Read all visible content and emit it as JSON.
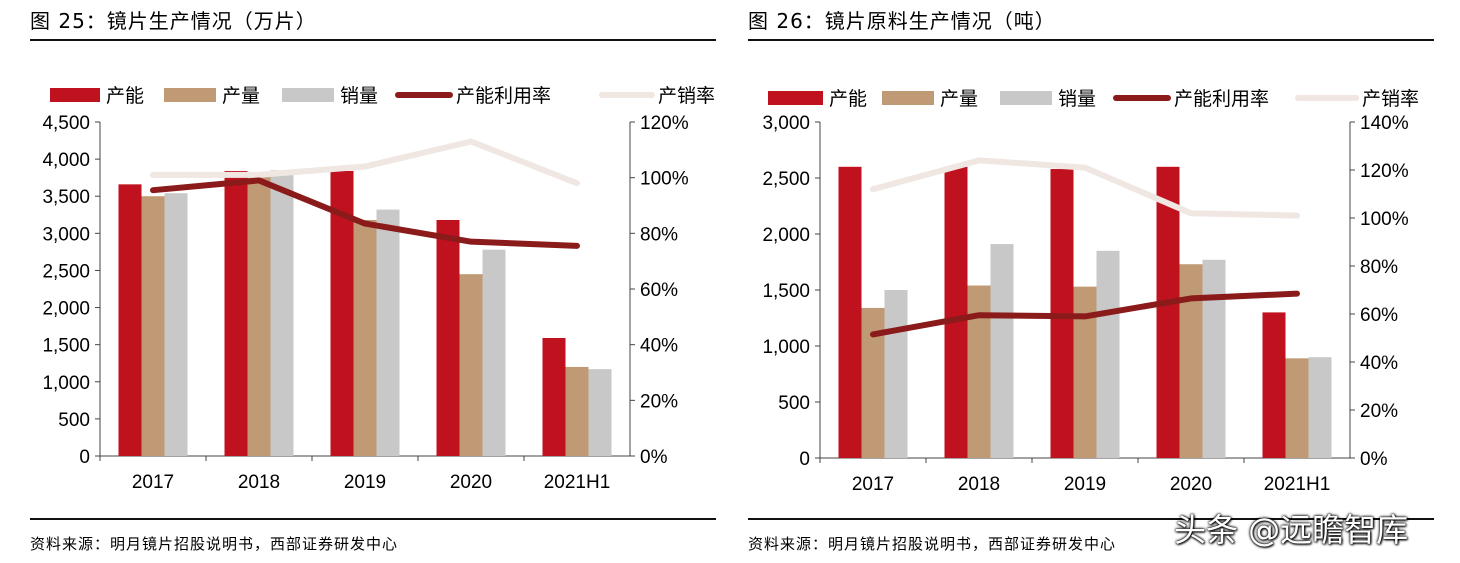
{
  "panels": [
    {
      "title": "图 25：镜片生产情况（万片）",
      "source": "资料来源：明月镜片招股说明书，西部证券研发中心",
      "legend": [
        "产能",
        "产量",
        "销量",
        "产能利用率",
        "产销率"
      ]
    },
    {
      "title": "图 26：镜片原料生产情况（吨）",
      "source": "资料来源：明月镜片招股说明书，西部证券研发中心",
      "legend": [
        "产能",
        "产量",
        "销量",
        "产能利用率",
        "产销率"
      ]
    }
  ],
  "watermark": "头条 @远瞻智库",
  "colors": {
    "capacity": "#c0111e",
    "output": "#bf9a74",
    "sales": "#c8c8c8",
    "utilization": "#8b1a1a",
    "sales_rate": "#f0e6e2"
  },
  "chart_data": [
    {
      "type": "bar",
      "categories": [
        "2017",
        "2018",
        "2019",
        "2020",
        "2021H1"
      ],
      "series": [
        {
          "name": "产能",
          "values": [
            3660,
            3840,
            3840,
            3180,
            1590
          ]
        },
        {
          "name": "产量",
          "values": [
            3500,
            3800,
            3180,
            2450,
            1200
          ]
        },
        {
          "name": "销量",
          "values": [
            3540,
            3850,
            3320,
            2780,
            1170
          ]
        },
        {
          "name": "产能利用率",
          "axis": "right",
          "kind": "line",
          "values": [
            95.5,
            99,
            83.5,
            77,
            75.5
          ]
        },
        {
          "name": "产销率",
          "axis": "right",
          "kind": "line",
          "values": [
            101,
            101,
            104,
            113,
            98
          ]
        }
      ],
      "y_ticks": [
        "0",
        "500",
        "1,000",
        "1,500",
        "2,000",
        "2,500",
        "3,000",
        "3,500",
        "4,000",
        "4,500"
      ],
      "y2_ticks": [
        "0%",
        "20%",
        "40%",
        "60%",
        "80%",
        "100%",
        "120%"
      ],
      "ylim": [
        0,
        4500
      ],
      "y2lim": [
        0,
        120
      ],
      "legend_position": "top"
    },
    {
      "type": "bar",
      "categories": [
        "2017",
        "2018",
        "2019",
        "2020",
        "2021H1"
      ],
      "series": [
        {
          "name": "产能",
          "values": [
            2600,
            2600,
            2580,
            2600,
            1300
          ]
        },
        {
          "name": "产量",
          "values": [
            1340,
            1540,
            1530,
            1730,
            890
          ]
        },
        {
          "name": "销量",
          "values": [
            1500,
            1910,
            1850,
            1770,
            900
          ]
        },
        {
          "name": "产能利用率",
          "axis": "right",
          "kind": "line",
          "values": [
            51.5,
            59.5,
            59,
            66.5,
            68.5
          ]
        },
        {
          "name": "产销率",
          "axis": "right",
          "kind": "line",
          "values": [
            112,
            124,
            121,
            102,
            101
          ]
        }
      ],
      "y_ticks": [
        "0",
        "500",
        "1,000",
        "1,500",
        "2,000",
        "2,500",
        "3,000"
      ],
      "y2_ticks": [
        "0%",
        "20%",
        "40%",
        "60%",
        "80%",
        "100%",
        "120%",
        "140%"
      ],
      "ylim": [
        0,
        3000
      ],
      "y2lim": [
        0,
        140
      ],
      "legend_position": "top"
    }
  ]
}
